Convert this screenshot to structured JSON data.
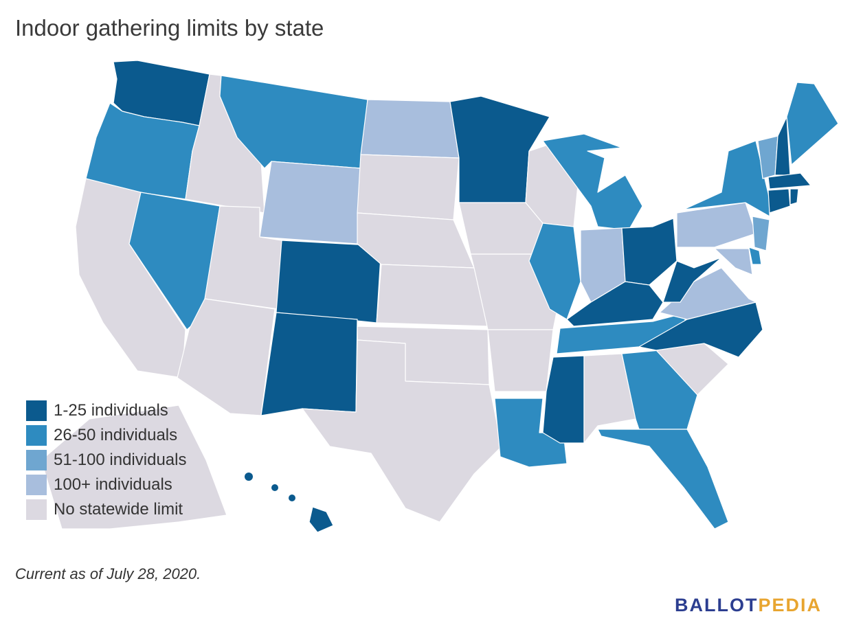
{
  "title": "Indoor gathering limits by state",
  "legend": [
    {
      "label": "1-25 individuals",
      "color": "#0b5a8e"
    },
    {
      "label": "26-50 individuals",
      "color": "#2e8bc0"
    },
    {
      "label": "51-100 individuals",
      "color": "#6fa6d0"
    },
    {
      "label": "100+ individuals",
      "color": "#a8bedd"
    },
    {
      "label": "No statewide limit",
      "color": "#dcd9e1"
    }
  ],
  "footnote": "Current as of July 28, 2020.",
  "logo": {
    "part1": "BALLOT",
    "part2": "PEDIA"
  }
}
